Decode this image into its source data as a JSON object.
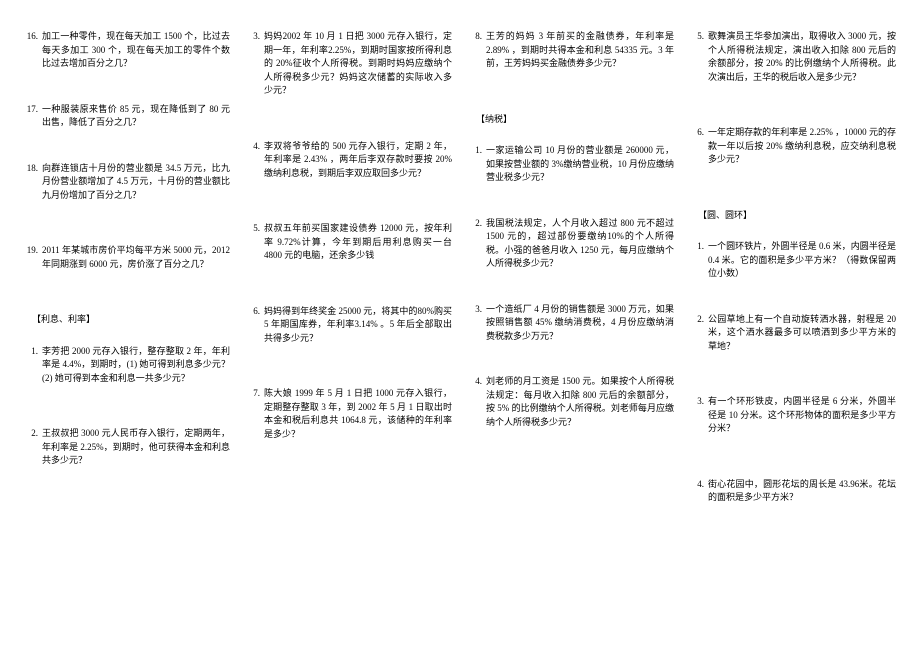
{
  "col1": {
    "items1": [
      {
        "n": "16.",
        "t": "加工一种零件，现在每天加工 1500 个，比过去每天多加工 300 个，现在每天加工的零件个数比过去增加百分之几？"
      },
      {
        "n": "17.",
        "t": "一种服装原来售价 85 元，现在降低到了 80 元出售，降低了百分之几？"
      },
      {
        "n": "18.",
        "t": "向群连锁店十月份的营业额是 34.5 万元，比九月份营业额增加了 4.5 万元，十月份的营业额比九月份增加了百分之几？"
      },
      {
        "n": "19.",
        "t": "2011 年某城市房价平均每平方米 5000 元，2012 年同期涨到 6000 元，房价涨了百分之几？"
      }
    ],
    "section1": "【利息、利率】",
    "items2": [
      {
        "n": "1.",
        "t": "李芳把 2000 元存入银行，整存整取 2 年，年利率是 4.4%，到期时，(1) 她可得到利息多少元？ (2) 她可得到本金和利息一共多少元？"
      },
      {
        "n": "2.",
        "t": "王叔叔把 3000 元人民币存入银行，定期两年，年利率是 2.25%，到期时，他可获得本金和利息共多少元？"
      }
    ]
  },
  "col2": {
    "items": [
      {
        "n": "3.",
        "t": "妈妈2002 年 10 月 1 日把 3000 元存入银行，定期一年，年利率2.25%，到期时国家按所得利息的 20%征收个人所得税。到期时妈妈应缴纳个人所得税多少元？妈妈这次储蓄的实际收入多少元？"
      },
      {
        "n": "4.",
        "t": "李双将爷爷给的 500 元存入银行，定期 2 年，年利率是 2.43% ，两年后李双存款时要按 20% 缴纳利息税，到期后李双应取回多少元？"
      },
      {
        "n": "5.",
        "t": "叔叔五年前买国家建设债券 12000 元，按年利率 9.72%计算，今年到期后用利息购买一台 4800 元的电脑，还余多少钱"
      },
      {
        "n": "6.",
        "t": "妈妈得到年终奖金 25000 元，将其中的80%购买 5 年期国库券，年利率3.14% 。5 年后全部取出共得多少元？"
      },
      {
        "n": "7.",
        "t": "陈大娘 1999 年 5 月 1 日把 1000 元存入银行，定期整存整取 3 年，到 2002 年 5 月 1 日取出时本金和税后利息共 1064.8 元，该储种的年利率是多少？"
      }
    ]
  },
  "col3": {
    "items1": [
      {
        "n": "8.",
        "t": "王芳的妈妈 3 年前买的金融债券，年利率是 2.89% ，到期时共得本金和利息 54335 元。3 年前，王芳妈妈买金融债券多少元？"
      }
    ],
    "section1": "【纳税】",
    "items2": [
      {
        "n": "1.",
        "t": "一家运输公司 10 月份的营业额是 260000 元，如果按营业额的 3%缴纳营业税，10 月份应缴纳营业税多少元？"
      },
      {
        "n": "2.",
        "t": "我国税法规定，人个月收入超过 800 元不超过 1500 元的，超过部份要缴纳10%的个人所得税。小强的爸爸月收入 1250 元，每月应缴纳个人所得税多少元？"
      },
      {
        "n": "3.",
        "t": "一个造纸厂 4 月份的销售额是 3000 万元，如果按照销售额 45% 缴纳消费税，4 月份应缴纳消费税款多少万元？"
      },
      {
        "n": "4.",
        "t": "刘老师的月工资是 1500 元。如果按个人所得税法规定：每月收入扣除 800 元后的余额部分，按 5% 的比例缴纳个人所得税。刘老师每月应缴纳个人所得税多少元？"
      }
    ]
  },
  "col4": {
    "items1": [
      {
        "n": "5.",
        "t": "歌舞演员王华参加演出，取得收入 3000 元，按个人所得税法规定，演出收入扣除 800 元后的余额部分，按 20% 的比例缴纳个人所得税。此次演出后，王华的税后收入是多少元？"
      },
      {
        "n": "6.",
        "t": "一年定期存款的年利率是 2.25% ，10000 元的存款一年以后按 20% 缴纳利息税，应交纳利息税多少元？"
      }
    ],
    "section1": "【圆、圆环】",
    "items2": [
      {
        "n": "1.",
        "t": "一个圆环铁片，外圆半径是 0.6 米，内圆半径是 0.4 米。它的面积是多少平方米？（得数保留两位小数）"
      },
      {
        "n": "2.",
        "t": "公园草地上有一个自动旋转洒水器，射程是 20 米，这个洒水器最多可以喷洒到多少平方米的草地？"
      },
      {
        "n": "3.",
        "t": "有一个环形铁皮，内圆半径是 6 分米，外圆半径是 10 分米。这个环形物体的面积是多少平方分米？"
      },
      {
        "n": "4.",
        "t": "街心花园中，圆形花坛的周长是 43.96米。花坛的面积是多少平方米？"
      }
    ]
  }
}
